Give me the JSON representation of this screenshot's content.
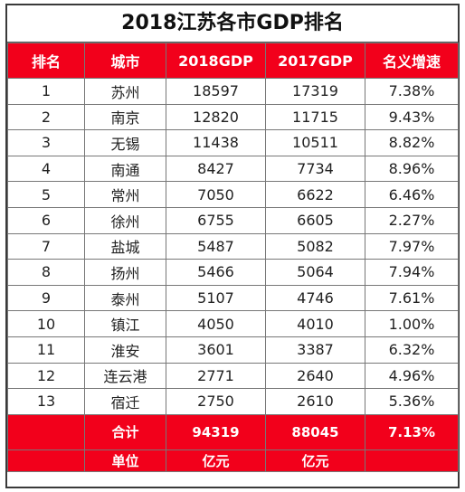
{
  "title": "2018江苏各市GDP排名",
  "headers": [
    "排名",
    "城市",
    "2018GDP",
    "2017GDP",
    "名义增速"
  ],
  "rows": [
    [
      "1",
      "苏州",
      "18597",
      "17319",
      "7.38%"
    ],
    [
      "2",
      "南京",
      "12820",
      "11715",
      "9.43%"
    ],
    [
      "3",
      "无锡",
      "11438",
      "10511",
      "8.82%"
    ],
    [
      "4",
      "南通",
      "8427",
      "7734",
      "8.96%"
    ],
    [
      "5",
      "常州",
      "7050",
      "6622",
      "6.46%"
    ],
    [
      "6",
      "徐州",
      "6755",
      "6605",
      "2.27%"
    ],
    [
      "7",
      "盐城",
      "5487",
      "5082",
      "7.97%"
    ],
    [
      "8",
      "扬州",
      "5466",
      "5064",
      "7.94%"
    ],
    [
      "9",
      "泰州",
      "5107",
      "4746",
      "7.61%"
    ],
    [
      "10",
      "镇江",
      "4050",
      "4010",
      "1.00%"
    ],
    [
      "11",
      "淮安",
      "3601",
      "3387",
      "6.32%"
    ],
    [
      "12",
      "连云港",
      "2771",
      "2640",
      "4.96%"
    ],
    [
      "13",
      "宿迁",
      "2750",
      "2610",
      "5.36%"
    ]
  ],
  "total": {
    "label": "合计",
    "gdp2018": "94319",
    "gdp2017": "88045",
    "growth": "7.13%"
  },
  "unit": {
    "label": "单位",
    "gdp2018": "亿元",
    "gdp2017": "亿元"
  },
  "colors": {
    "header_bg": "#f2001b",
    "header_text": "#ffffff"
  }
}
